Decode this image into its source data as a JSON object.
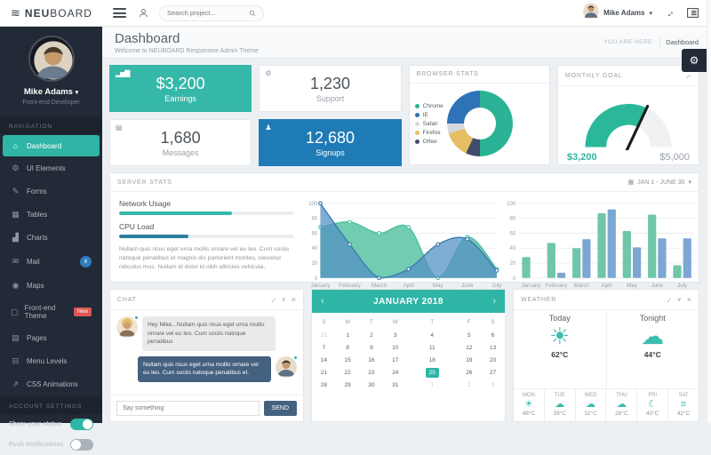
{
  "icons": {
    "logo-icon": "≋",
    "home-icon": "⌂",
    "gears-icon": "⚙",
    "pencil-icon": "✎",
    "table-icon": "▦",
    "chart-icon": "▟",
    "mail-icon": "✉",
    "map-pin-icon": "◉",
    "monitor-icon": "▢",
    "pages-icon": "▤",
    "folder-icon": "⊟",
    "animation-icon": "⇗",
    "bar-chart-icon": "▂▅▇",
    "gear-icon": "⚙",
    "inbox-icon": "▤",
    "user-icon": "♟",
    "sun-icon": "☀",
    "cloud-icon": "☁",
    "sun-cloud-icon": "☀",
    "drizzle-icon": "☁",
    "moon-icon": "☾",
    "fog-icon": "≡",
    "calendar-icon": "▦",
    "caret-down-icon": "▾",
    "chevron-down-icon": "∨",
    "close-icon": "×",
    "prev-icon": "‹",
    "next-icon": "›",
    "settings-gear-icon": "⚙"
  },
  "navbar": {
    "brand_bold": "NEU",
    "brand_light": "BOARD",
    "search_placeholder": "Search project...",
    "user_name": "Mike Adams"
  },
  "breadcrumb": {
    "prefix": "YOU ARE HERE:",
    "current": "Dashboard"
  },
  "page": {
    "title": "Dashboard",
    "subtitle": "Welcome to NEUBOARD Responsive Admin Theme"
  },
  "sidebar": {
    "profile": {
      "name": "Mike Adams",
      "role": "Front-end Developer"
    },
    "nav_label": "NAVIGATION",
    "items": [
      {
        "label": "Dashboard",
        "icon": "home-icon",
        "active": true
      },
      {
        "label": "UI Elements",
        "icon": "gears-icon"
      },
      {
        "label": "Forms",
        "icon": "pencil-icon"
      },
      {
        "label": "Tables",
        "icon": "table-icon"
      },
      {
        "label": "Charts",
        "icon": "chart-icon"
      },
      {
        "label": "Mail",
        "icon": "mail-icon",
        "badge": "8",
        "badge_style": "round"
      },
      {
        "label": "Maps",
        "icon": "map-pin-icon"
      },
      {
        "label": "Front-end Theme",
        "icon": "monitor-icon",
        "badge": "New",
        "badge_style": "pill"
      },
      {
        "label": "Pages",
        "icon": "pages-icon"
      },
      {
        "label": "Menu Levels",
        "icon": "folder-icon"
      },
      {
        "label": "CSS Animations",
        "icon": "animation-icon"
      }
    ],
    "settings_label": "ACCOUNT SETTINGS",
    "toggles": [
      {
        "label": "Share your status",
        "on": true
      },
      {
        "label": "Push Notifications",
        "on": false
      }
    ]
  },
  "stats": [
    {
      "label": "Earnings",
      "value": "$3,200",
      "style": "teal",
      "icon": "bar-chart-icon"
    },
    {
      "label": "Support",
      "value": "1,230",
      "style": "white",
      "icon": "gear-icon"
    },
    {
      "label": "Messages",
      "value": "1,680",
      "style": "white",
      "icon": "inbox-icon"
    },
    {
      "label": "Signups",
      "value": "12,680",
      "style": "blue",
      "icon": "user-icon"
    }
  ],
  "browser_stats": {
    "title": "BROWSER STATS"
  },
  "monthly_goal": {
    "title": "MONTHLY GOAL",
    "current": "$3,200",
    "target": "$5,000"
  },
  "server_stats": {
    "title": "SERVER STATS",
    "range_label": "JAN 1 - JUNE 30",
    "meters": [
      {
        "label": "Network Usage",
        "percent": 65,
        "color": "#35b8a8"
      },
      {
        "label": "CPU Load",
        "percent": 40,
        "color": "#2d7f9d"
      }
    ],
    "description": "Nullam quis risus eget urna mollis ornare vel eu leo. Cum sociis natoque penatibus et magnis dis parturient montes, nascetur ridiculus mus. Nullam id dolor id nibh ultricies vehicula."
  },
  "chart_data": [
    {
      "id": "server-area",
      "type": "area",
      "x": [
        "January",
        "February",
        "March",
        "April",
        "May",
        "June",
        "July"
      ],
      "series": [
        {
          "name": "series-a",
          "color": "#4fbf9f",
          "fill": "#62c6a8",
          "fill_opacity": 0.9,
          "values": [
            68,
            75,
            60,
            68,
            0,
            55,
            12
          ]
        },
        {
          "name": "series-b",
          "color": "#3779ad",
          "fill": "#5592c4",
          "fill_opacity": 0.75,
          "values": [
            100,
            45,
            0,
            12,
            45,
            52,
            10
          ]
        }
      ],
      "ylim": [
        0,
        100
      ],
      "yticks": [
        0,
        20,
        40,
        60,
        80,
        100
      ],
      "grid": true,
      "legend_position": "none"
    },
    {
      "id": "server-bars",
      "type": "bar",
      "x": [
        "January",
        "February",
        "March",
        "April",
        "May",
        "June",
        "July"
      ],
      "series": [
        {
          "name": "series-a",
          "color": "#6fc6a8",
          "values": [
            28,
            47,
            40,
            87,
            63,
            85,
            17
          ]
        },
        {
          "name": "series-b",
          "color": "#7da7d2",
          "values": [
            0,
            7,
            52,
            92,
            41,
            53,
            53
          ]
        }
      ],
      "ylim": [
        0,
        100
      ],
      "yticks": [
        0,
        20,
        40,
        60,
        80,
        100
      ],
      "grid": true,
      "legend_position": "none"
    },
    {
      "id": "browser-donut",
      "type": "pie",
      "title": "BROWSER STATS",
      "legend": [
        {
          "label": "Chrome",
          "color": "#2ab394"
        },
        {
          "label": "IE",
          "color": "#2e73b8"
        },
        {
          "label": "Safari",
          "color": "#d5d9dc"
        },
        {
          "label": "Firefox",
          "color": "#e5bd62"
        },
        {
          "label": "Other",
          "color": "#3f4d6b"
        }
      ],
      "segments_clockwise_from_top": [
        {
          "label": "Chrome",
          "value": 50,
          "color": "#2ab394"
        },
        {
          "label": "Other",
          "value": 7,
          "color": "#3f4d6b"
        },
        {
          "label": "Firefox",
          "value": 13,
          "color": "#e5bd62"
        },
        {
          "label": "Safari",
          "value": 5,
          "color": "#d5d9dc"
        },
        {
          "label": "IE",
          "value": 25,
          "color": "#2e73b8"
        }
      ]
    },
    {
      "id": "goal-gauge",
      "type": "gauge",
      "title": "MONTHLY GOAL",
      "value": 3200,
      "max": 5000,
      "color": "#2bb89a",
      "track": "#eff1f3",
      "needle": "#1c1c1c"
    }
  ],
  "chat": {
    "title": "CHAT",
    "messages": [
      {
        "side": "left",
        "avatar": "female",
        "text": "Hey Mike...Nullam quis risus eget urna mollis ornare vel eu leo. Cum sociis natoque penatibus"
      },
      {
        "side": "right",
        "avatar": "male",
        "text": "Nullam quis risus eget urna mollis ornare vel eu leo. Cum sociis natoque penatibus et."
      }
    ],
    "input_placeholder": "Say something",
    "send_label": "SEND"
  },
  "calendar": {
    "title": "JANUARY 2018",
    "day_headers": [
      "S",
      "M",
      "T",
      "W",
      "T",
      "F",
      "S"
    ],
    "weeks": [
      [
        {
          "d": "31",
          "muted": true
        },
        {
          "d": "1"
        },
        {
          "d": "2"
        },
        {
          "d": "3"
        },
        {
          "d": "4"
        },
        {
          "d": "5"
        },
        {
          "d": "6"
        }
      ],
      [
        {
          "d": "7"
        },
        {
          "d": "8"
        },
        {
          "d": "9"
        },
        {
          "d": "10"
        },
        {
          "d": "11"
        },
        {
          "d": "12"
        },
        {
          "d": "13"
        }
      ],
      [
        {
          "d": "14"
        },
        {
          "d": "15"
        },
        {
          "d": "16"
        },
        {
          "d": "17"
        },
        {
          "d": "18"
        },
        {
          "d": "19"
        },
        {
          "d": "20"
        }
      ],
      [
        {
          "d": "21"
        },
        {
          "d": "22"
        },
        {
          "d": "23"
        },
        {
          "d": "24"
        },
        {
          "d": "25",
          "selected": true
        },
        {
          "d": "26"
        },
        {
          "d": "27"
        }
      ],
      [
        {
          "d": "28"
        },
        {
          "d": "29"
        },
        {
          "d": "30"
        },
        {
          "d": "31"
        },
        {
          "d": "1",
          "muted": true
        },
        {
          "d": "2",
          "muted": true
        },
        {
          "d": "3",
          "muted": true
        }
      ]
    ]
  },
  "weather": {
    "title": "WEATHER",
    "today": {
      "label": "Today",
      "icon": "sun-icon",
      "temp": "62°C"
    },
    "tonight": {
      "label": "Tonight",
      "icon": "cloud-icon",
      "temp": "44°C"
    },
    "days": [
      {
        "name": "MON",
        "icon": "sun-cloud-icon",
        "temp": "48°C"
      },
      {
        "name": "TUE",
        "icon": "drizzle-icon",
        "temp": "39°C"
      },
      {
        "name": "WED",
        "icon": "drizzle-icon",
        "temp": "32°C"
      },
      {
        "name": "THU",
        "icon": "drizzle-icon",
        "temp": "28°C"
      },
      {
        "name": "FRI",
        "icon": "moon-icon",
        "temp": "40°C"
      },
      {
        "name": "SAT",
        "icon": "fog-icon",
        "temp": "42°C"
      }
    ]
  }
}
